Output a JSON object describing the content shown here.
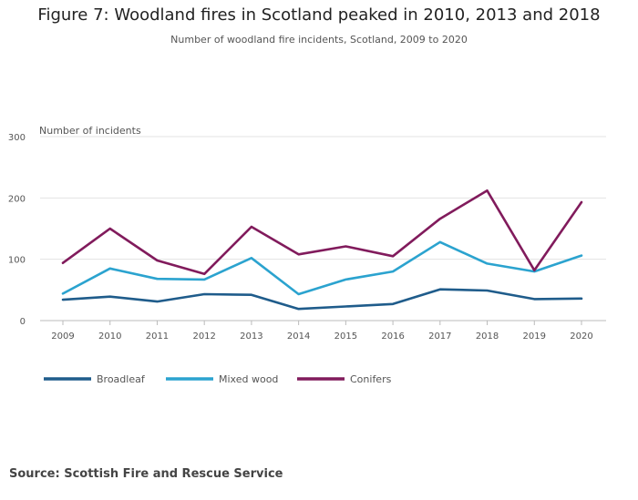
{
  "title": "Figure 7: Woodland fires in Scotland peaked in 2010, 2013 and 2018",
  "subtitle": "Number of woodland fire incidents, Scotland, 2009 to 2020",
  "source": "Source: Scottish Fire and Rescue Service",
  "chart_data": {
    "type": "line",
    "title": "Figure 7: Woodland fires in Scotland peaked in 2010, 2013 and 2018",
    "subtitle": "Number of woodland fire incidents, Scotland, 2009 to 2020",
    "ylabel": "Number of incidents",
    "xlabel": "",
    "ylim": [
      0,
      300
    ],
    "yticks": [
      "0",
      "100",
      "200",
      "300"
    ],
    "x": [
      "2009",
      "2010",
      "2011",
      "2012",
      "2013",
      "2014",
      "2015",
      "2016",
      "2017",
      "2018",
      "2019",
      "2020"
    ],
    "grid": true,
    "legend": "bottom-left",
    "series": [
      {
        "name": "Broadleaf",
        "color": "#1f5c8b",
        "values": [
          34,
          39,
          31,
          43,
          42,
          19,
          23,
          27,
          51,
          49,
          35,
          36
        ]
      },
      {
        "name": "Mixed wood",
        "color": "#2ba3cf",
        "values": [
          44,
          85,
          68,
          67,
          102,
          43,
          67,
          80,
          128,
          93,
          80,
          106
        ]
      },
      {
        "name": "Conifers",
        "color": "#811b5c",
        "values": [
          94,
          150,
          98,
          76,
          153,
          108,
          121,
          105,
          166,
          212,
          82,
          193
        ]
      }
    ]
  }
}
